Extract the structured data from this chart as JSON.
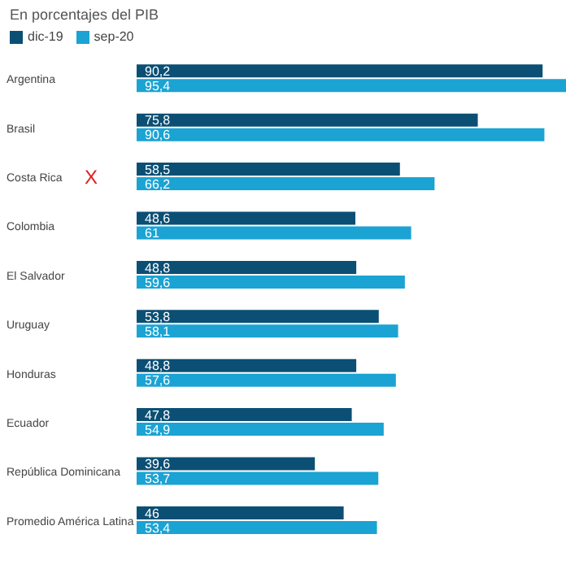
{
  "chart_data": {
    "type": "bar",
    "orientation": "horizontal",
    "subtitle": "En porcentajes del PIB",
    "legend": "top left",
    "categories": [
      "Argentina",
      "Brasil",
      "Costa Rica",
      "Colombia",
      "El Salvador",
      "Uruguay",
      "Honduras",
      "Ecuador",
      "República Dominicana",
      "Promedio América Latina"
    ],
    "series": [
      {
        "name": "dic-19",
        "color": "#0b4f74",
        "values": [
          90.2,
          75.8,
          58.5,
          48.6,
          48.8,
          53.8,
          48.8,
          47.8,
          39.6,
          46
        ],
        "value_labels": [
          "90,2",
          "75,8",
          "58,5",
          "48,6",
          "48,8",
          "53,8",
          "48,8",
          "47,8",
          "39,6",
          "46"
        ]
      },
      {
        "name": "sep-20",
        "color": "#1ba3d3",
        "values": [
          95.4,
          90.6,
          66.2,
          61,
          59.6,
          58.1,
          57.6,
          54.9,
          53.7,
          53.4
        ],
        "value_labels": [
          "95,4",
          "90,6",
          "66,2",
          "61",
          "59,6",
          "58,1",
          "57,6",
          "54,9",
          "53,7",
          "53,4"
        ]
      }
    ],
    "annotations": [
      "X"
    ]
  }
}
